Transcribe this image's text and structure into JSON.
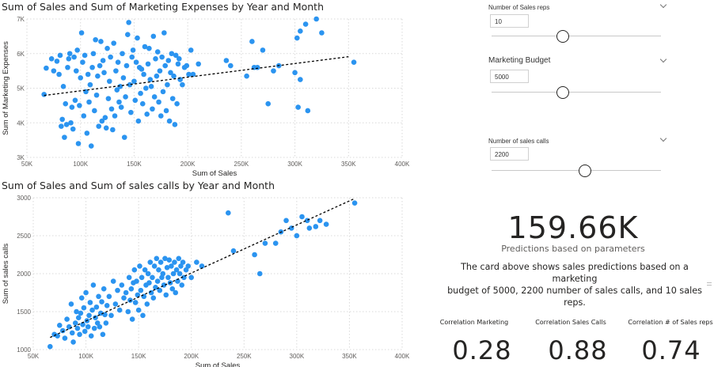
{
  "charts": {
    "marketing": {
      "title": "Sum of Sales and Sum of Marketing Expenses by Year and Month",
      "ytitle": "Sum of Marketing Expenses"
    },
    "calls": {
      "title": "Sum of Sales and Sum of sales calls by Year and Month",
      "ytitle": "Sum of sales calls"
    }
  },
  "slicers": {
    "sales_reps": {
      "title": "Number of Sales reps",
      "value": "10",
      "level": 0.42
    },
    "marketing_budget": {
      "title": "Marketing Budget",
      "value": "5000",
      "level": 0.42
    },
    "sales_calls": {
      "title": "Number of sales calls",
      "value": "2200",
      "level": 0.55
    }
  },
  "kpi": {
    "value": "159.66K",
    "label": "Predictions based on parameters"
  },
  "description": {
    "line1": "The card above shows sales predictions based on a marketing",
    "line2": "budget of 5000, 2200 number of sales calls, and 10 sales reps."
  },
  "correlations": [
    {
      "label": "Correlation Marketing",
      "value": "0.28"
    },
    {
      "label": "Correlation Sales Calls",
      "value": "0.88"
    },
    {
      "label": "Correlation # of Sales reps",
      "value": "0.74"
    }
  ],
  "colors": {
    "point": "#2b94f0",
    "trend": "#000000",
    "grid": "#d9d9d9"
  },
  "chart_data": [
    {
      "type": "scatter",
      "title": "Sum of Sales and Sum of Marketing Expenses by Year and Month",
      "xlabel": "Sum of Sales",
      "ylabel": "Sum of Marketing Expenses",
      "xlim": [
        50000,
        400000
      ],
      "ylim": [
        3000,
        7000
      ],
      "xticks": [
        {
          "v": 50000,
          "label": "50K"
        },
        {
          "v": 100000,
          "label": "100K"
        },
        {
          "v": 150000,
          "label": "150K"
        },
        {
          "v": 200000,
          "label": "200K"
        },
        {
          "v": 250000,
          "label": "250K"
        },
        {
          "v": 300000,
          "label": "300K"
        },
        {
          "v": 350000,
          "label": "350K"
        },
        {
          "v": 400000,
          "label": "400K"
        }
      ],
      "yticks": [
        {
          "v": 3000,
          "label": "3K"
        },
        {
          "v": 4000,
          "label": "4K"
        },
        {
          "v": 5000,
          "label": "5K"
        },
        {
          "v": 6000,
          "label": "6K"
        },
        {
          "v": 7000,
          "label": "7K"
        }
      ],
      "trend": [
        [
          66000,
          4790
        ],
        [
          350000,
          5910
        ]
      ],
      "points": [
        [
          66000,
          4820
        ],
        [
          68000,
          5580
        ],
        [
          73000,
          5850
        ],
        [
          75000,
          5500
        ],
        [
          78000,
          5780
        ],
        [
          80000,
          5400
        ],
        [
          81000,
          5950
        ],
        [
          82000,
          3900
        ],
        [
          83000,
          4100
        ],
        [
          84000,
          5050
        ],
        [
          85000,
          3580
        ],
        [
          86000,
          4550
        ],
        [
          87000,
          3950
        ],
        [
          88000,
          5600
        ],
        [
          89000,
          5850
        ],
        [
          90000,
          6000
        ],
        [
          91000,
          4000
        ],
        [
          92000,
          4450
        ],
        [
          93000,
          3820
        ],
        [
          94000,
          5900
        ],
        [
          95000,
          4650
        ],
        [
          96000,
          5500
        ],
        [
          97000,
          6100
        ],
        [
          98000,
          3400
        ],
        [
          99000,
          4500
        ],
        [
          100000,
          5300
        ],
        [
          101000,
          6600
        ],
        [
          102000,
          5750
        ],
        [
          103000,
          4200
        ],
        [
          104000,
          5950
        ],
        [
          105000,
          4900
        ],
        [
          106000,
          3700
        ],
        [
          107000,
          5400
        ],
        [
          108000,
          4600
        ],
        [
          109000,
          5100
        ],
        [
          110000,
          3330
        ],
        [
          111000,
          5600
        ],
        [
          112000,
          6000
        ],
        [
          113000,
          4350
        ],
        [
          114000,
          6400
        ],
        [
          115000,
          4800
        ],
        [
          116000,
          5350
        ],
        [
          117000,
          3900
        ],
        [
          118000,
          5650
        ],
        [
          119000,
          6350
        ],
        [
          120000,
          4050
        ],
        [
          121000,
          5800
        ],
        [
          122000,
          5450
        ],
        [
          123000,
          4150
        ],
        [
          124000,
          3850
        ],
        [
          125000,
          6150
        ],
        [
          126000,
          4700
        ],
        [
          127000,
          5200
        ],
        [
          128000,
          5900
        ],
        [
          129000,
          4400
        ],
        [
          130000,
          3800
        ],
        [
          131000,
          6300
        ],
        [
          132000,
          4200
        ],
        [
          133000,
          5500
        ],
        [
          134000,
          4950
        ],
        [
          135000,
          5750
        ],
        [
          136000,
          4600
        ],
        [
          137000,
          5050
        ],
        [
          138000,
          4450
        ],
        [
          139000,
          6000
        ],
        [
          140000,
          5300
        ],
        [
          141000,
          3580
        ],
        [
          142000,
          4750
        ],
        [
          143000,
          5650
        ],
        [
          144000,
          6550
        ],
        [
          145000,
          6900
        ],
        [
          146000,
          5100
        ],
        [
          147000,
          4300
        ],
        [
          148000,
          5900
        ],
        [
          149000,
          6100
        ],
        [
          150000,
          5200
        ],
        [
          151000,
          4650
        ],
        [
          152000,
          5750
        ],
        [
          153000,
          6450
        ],
        [
          154000,
          4050
        ],
        [
          155000,
          5600
        ],
        [
          156000,
          4850
        ],
        [
          157000,
          5550
        ],
        [
          158000,
          4550
        ],
        [
          159000,
          5400
        ],
        [
          160000,
          6200
        ],
        [
          161000,
          5000
        ],
        [
          162000,
          4250
        ],
        [
          163000,
          5700
        ],
        [
          164000,
          6150
        ],
        [
          165000,
          5250
        ],
        [
          166000,
          5050
        ],
        [
          167000,
          4400
        ],
        [
          168000,
          6500
        ],
        [
          169000,
          4750
        ],
        [
          170000,
          5850
        ],
        [
          171000,
          5350
        ],
        [
          172000,
          6050
        ],
        [
          173000,
          4600
        ],
        [
          174000,
          5500
        ],
        [
          175000,
          4200
        ],
        [
          176000,
          5900
        ],
        [
          177000,
          4900
        ],
        [
          178000,
          6600
        ],
        [
          179000,
          5650
        ],
        [
          180000,
          4350
        ],
        [
          181000,
          5100
        ],
        [
          182000,
          5800
        ],
        [
          183000,
          4050
        ],
        [
          184000,
          5450
        ],
        [
          185000,
          6000
        ],
        [
          186000,
          4700
        ],
        [
          187000,
          5350
        ],
        [
          188000,
          3950
        ],
        [
          189000,
          5950
        ],
        [
          190000,
          4550
        ],
        [
          191000,
          5700
        ],
        [
          192000,
          5850
        ],
        [
          193000,
          5250
        ],
        [
          195000,
          5100
        ],
        [
          197000,
          5600
        ],
        [
          199000,
          5650
        ],
        [
          201000,
          5400
        ],
        [
          203000,
          6100
        ],
        [
          205000,
          5400
        ],
        [
          210000,
          5700
        ],
        [
          236000,
          5800
        ],
        [
          240000,
          5650
        ],
        [
          255000,
          5350
        ],
        [
          260000,
          6350
        ],
        [
          262000,
          5600
        ],
        [
          265000,
          5600
        ],
        [
          270000,
          6100
        ],
        [
          275000,
          4550
        ],
        [
          280000,
          5500
        ],
        [
          285000,
          5650
        ],
        [
          300000,
          5450
        ],
        [
          302000,
          6450
        ],
        [
          303000,
          4450
        ],
        [
          305000,
          5250
        ],
        [
          305000,
          6650
        ],
        [
          310000,
          6850
        ],
        [
          312000,
          4350
        ],
        [
          320000,
          7000
        ],
        [
          325000,
          6600
        ],
        [
          355000,
          5750
        ]
      ]
    },
    {
      "type": "scatter",
      "title": "Sum of Sales and Sum of sales calls by Year and Month",
      "xlabel": "Sum of Sales",
      "ylabel": "Sum of sales calls",
      "xlim": [
        50000,
        400000
      ],
      "ylim": [
        1000,
        3000
      ],
      "xticks": [
        {
          "v": 50000,
          "label": "50K"
        },
        {
          "v": 100000,
          "label": "100K"
        },
        {
          "v": 150000,
          "label": "150K"
        },
        {
          "v": 200000,
          "label": "200K"
        },
        {
          "v": 250000,
          "label": "250K"
        },
        {
          "v": 300000,
          "label": "300K"
        },
        {
          "v": 350000,
          "label": "350K"
        },
        {
          "v": 400000,
          "label": "400K"
        }
      ],
      "yticks": [
        {
          "v": 1000,
          "label": "1000"
        },
        {
          "v": 1500,
          "label": "1500"
        },
        {
          "v": 2000,
          "label": "2000"
        },
        {
          "v": 2500,
          "label": "2500"
        },
        {
          "v": 3000,
          "label": "3000"
        }
      ],
      "trend": [
        [
          66000,
          1160
        ],
        [
          355000,
          2990
        ]
      ],
      "points": [
        [
          66000,
          1040
        ],
        [
          70000,
          1200
        ],
        [
          73000,
          1180
        ],
        [
          75000,
          1320
        ],
        [
          78000,
          1250
        ],
        [
          80000,
          1150
        ],
        [
          82000,
          1400
        ],
        [
          84000,
          1300
        ],
        [
          86000,
          1600
        ],
        [
          87000,
          1220
        ],
        [
          88000,
          1100
        ],
        [
          90000,
          1350
        ],
        [
          91000,
          1500
        ],
        [
          92000,
          1280
        ],
        [
          93000,
          1420
        ],
        [
          94000,
          1200
        ],
        [
          95000,
          1480
        ],
        [
          96000,
          1680
        ],
        [
          97000,
          1330
        ],
        [
          98000,
          1550
        ],
        [
          99000,
          1240
        ],
        [
          100000,
          1750
        ],
        [
          101000,
          1380
        ],
        [
          102000,
          1300
        ],
        [
          103000,
          1450
        ],
        [
          104000,
          1620
        ],
        [
          105000,
          1180
        ],
        [
          106000,
          1520
        ],
        [
          107000,
          1850
        ],
        [
          108000,
          1280
        ],
        [
          109000,
          1420
        ],
        [
          110000,
          1560
        ],
        [
          111000,
          1350
        ],
        [
          112000,
          1700
        ],
        [
          113000,
          1300
        ],
        [
          114000,
          1480
        ],
        [
          115000,
          1630
        ],
        [
          116000,
          1200
        ],
        [
          117000,
          1800
        ],
        [
          118000,
          1460
        ],
        [
          119000,
          1350
        ],
        [
          120000,
          1580
        ],
        [
          122000,
          1700
        ],
        [
          124000,
          1450
        ],
        [
          126000,
          1900
        ],
        [
          128000,
          1600
        ],
        [
          130000,
          1780
        ],
        [
          132000,
          1520
        ],
        [
          134000,
          1850
        ],
        [
          136000,
          1680
        ],
        [
          138000,
          1750
        ],
        [
          140000,
          1500
        ],
        [
          141000,
          1950
        ],
        [
          142000,
          1650
        ],
        [
          143000,
          1800
        ],
        [
          144000,
          1400
        ],
        [
          145000,
          1880
        ],
        [
          146000,
          2050
        ],
        [
          147000,
          1620
        ],
        [
          148000,
          1900
        ],
        [
          149000,
          1720
        ],
        [
          150000,
          1520
        ],
        [
          151000,
          2100
        ],
        [
          152000,
          1780
        ],
        [
          153000,
          1950
        ],
        [
          154000,
          1450
        ],
        [
          155000,
          1700
        ],
        [
          156000,
          2050
        ],
        [
          157000,
          1850
        ],
        [
          158000,
          1600
        ],
        [
          159000,
          2000
        ],
        [
          160000,
          1880
        ],
        [
          161000,
          2150
        ],
        [
          162000,
          1750
        ],
        [
          163000,
          1950
        ],
        [
          164000,
          1680
        ],
        [
          165000,
          2100
        ],
        [
          166000,
          1820
        ],
        [
          167000,
          2200
        ],
        [
          168000,
          1900
        ],
        [
          169000,
          2050
        ],
        [
          170000,
          1780
        ],
        [
          171000,
          2150
        ],
        [
          172000,
          1950
        ],
        [
          173000,
          2000
        ],
        [
          174000,
          1850
        ],
        [
          175000,
          2200
        ],
        [
          176000,
          1720
        ],
        [
          177000,
          2080
        ],
        [
          178000,
          1950
        ],
        [
          179000,
          2180
        ],
        [
          180000,
          1880
        ],
        [
          181000,
          2100
        ],
        [
          182000,
          1800
        ],
        [
          183000,
          2000
        ],
        [
          184000,
          2150
        ],
        [
          185000,
          1750
        ],
        [
          186000,
          2050
        ],
        [
          187000,
          1900
        ],
        [
          188000,
          2200
        ],
        [
          189000,
          2000
        ],
        [
          190000,
          2100
        ],
        [
          191000,
          1850
        ],
        [
          192000,
          2150
        ],
        [
          193000,
          1950
        ],
        [
          195000,
          2050
        ],
        [
          197000,
          2100
        ],
        [
          200000,
          1950
        ],
        [
          205000,
          2150
        ],
        [
          210000,
          2100
        ],
        [
          235000,
          2800
        ],
        [
          240000,
          2300
        ],
        [
          260000,
          2250
        ],
        [
          265000,
          2000
        ],
        [
          270000,
          2400
        ],
        [
          280000,
          2400
        ],
        [
          285000,
          2550
        ],
        [
          290000,
          2700
        ],
        [
          295000,
          2600
        ],
        [
          300000,
          2500
        ],
        [
          305000,
          2750
        ],
        [
          310000,
          2700
        ],
        [
          312000,
          2600
        ],
        [
          318000,
          2620
        ],
        [
          322000,
          2700
        ],
        [
          328000,
          2650
        ],
        [
          355000,
          2930
        ]
      ]
    }
  ]
}
